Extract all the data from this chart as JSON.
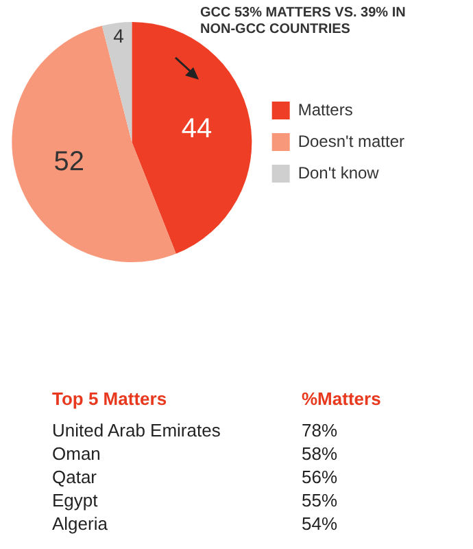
{
  "chart_data": {
    "type": "pie",
    "categories": [
      "Matters",
      "Doesn't matter",
      "Don't know"
    ],
    "values": [
      44,
      52,
      4
    ],
    "colors": [
      "#ef3e26",
      "#f8987b",
      "#cfcfcf"
    ],
    "data_labels": true,
    "legend": "right",
    "annotations": [
      "GCC 53% MATTERS VS. 39% IN NON-GCC COUNTRIES",
      "Top 5 Matters",
      "%Matters",
      "United Arab Emirates",
      "78%",
      "Oman",
      "58%",
      "Qatar",
      "56%",
      "Egypt",
      "55%",
      "Algeria",
      "54%"
    ]
  }
}
